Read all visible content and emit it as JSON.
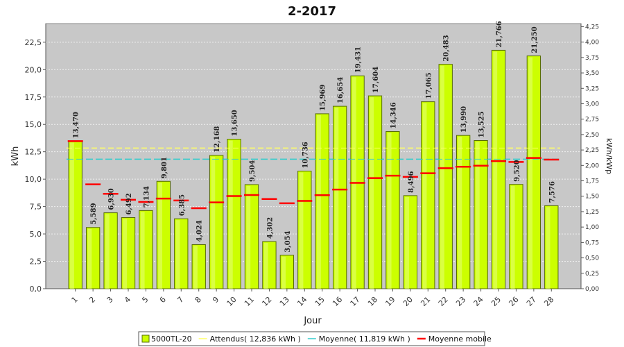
{
  "chart_data": {
    "type": "bar",
    "title": "2-2017",
    "xlabel": "Jour",
    "ylabel": "kWh",
    "y2label": "kWh/kWp",
    "ylim": [
      0,
      24.2
    ],
    "yticks": [
      "0,0",
      "2,5",
      "5,0",
      "7,5",
      "10,0",
      "12,5",
      "15,0",
      "17,5",
      "20,0",
      "22,5"
    ],
    "y2lim": [
      0,
      4.3
    ],
    "y2ticks": [
      "0,00",
      "0,25",
      "0,50",
      "0,75",
      "1,00",
      "1,25",
      "1,50",
      "1,75",
      "2,00",
      "2,25",
      "2,50",
      "2,75",
      "3,00",
      "3,25",
      "3,50",
      "3,75",
      "4,00",
      "4,25"
    ],
    "grid": true,
    "legend_position": "bottom",
    "categories": [
      "1",
      "2",
      "3",
      "4",
      "5",
      "6",
      "7",
      "8",
      "9",
      "10",
      "11",
      "12",
      "13",
      "14",
      "15",
      "16",
      "17",
      "18",
      "19",
      "20",
      "21",
      "22",
      "23",
      "24",
      "25",
      "26",
      "27",
      "28"
    ],
    "series": [
      {
        "name": "5000TL-20",
        "kind": "bar",
        "color": "#ccff00",
        "values": [
          13.47,
          5.589,
          6.93,
          6.492,
          7.134,
          9.801,
          6.385,
          4.024,
          12.168,
          13.65,
          9.504,
          4.302,
          3.054,
          10.736,
          15.969,
          16.654,
          19.431,
          17.604,
          14.346,
          8.496,
          17.065,
          20.483,
          13.99,
          13.525,
          21.766,
          9.52,
          21.25,
          7.576
        ],
        "labels": [
          "13,470",
          "5,589",
          "6,930",
          "6,492",
          "7,134",
          "9,801",
          "6,385",
          "4,024",
          "12,168",
          "13,650",
          "9,504",
          "4,302",
          "3,054",
          "10,736",
          "15,969",
          "16,654",
          "19,431",
          "17,604",
          "14,346",
          "8,496",
          "17,065",
          "20,483",
          "13,990",
          "13,525",
          "21,766",
          "9,520",
          "21,250",
          "7,576"
        ]
      },
      {
        "name": "Attendus( 12,836 kWh )",
        "kind": "line",
        "color": "#ffff66",
        "value": 12.836
      },
      {
        "name": "Moyenne( 11,819 kWh )",
        "kind": "line",
        "color": "#33cccc",
        "value": 11.819
      },
      {
        "name": "Moyenne mobile",
        "kind": "marker",
        "color": "#ff0000",
        "values": [
          13.47,
          9.53,
          8.66,
          8.12,
          7.92,
          8.23,
          8.05,
          7.35,
          7.88,
          8.46,
          8.55,
          8.19,
          7.8,
          8.01,
          8.54,
          9.05,
          9.66,
          10.1,
          10.32,
          10.21,
          10.54,
          11.0,
          11.13,
          11.23,
          11.65,
          11.57,
          11.93,
          11.78
        ]
      }
    ]
  }
}
